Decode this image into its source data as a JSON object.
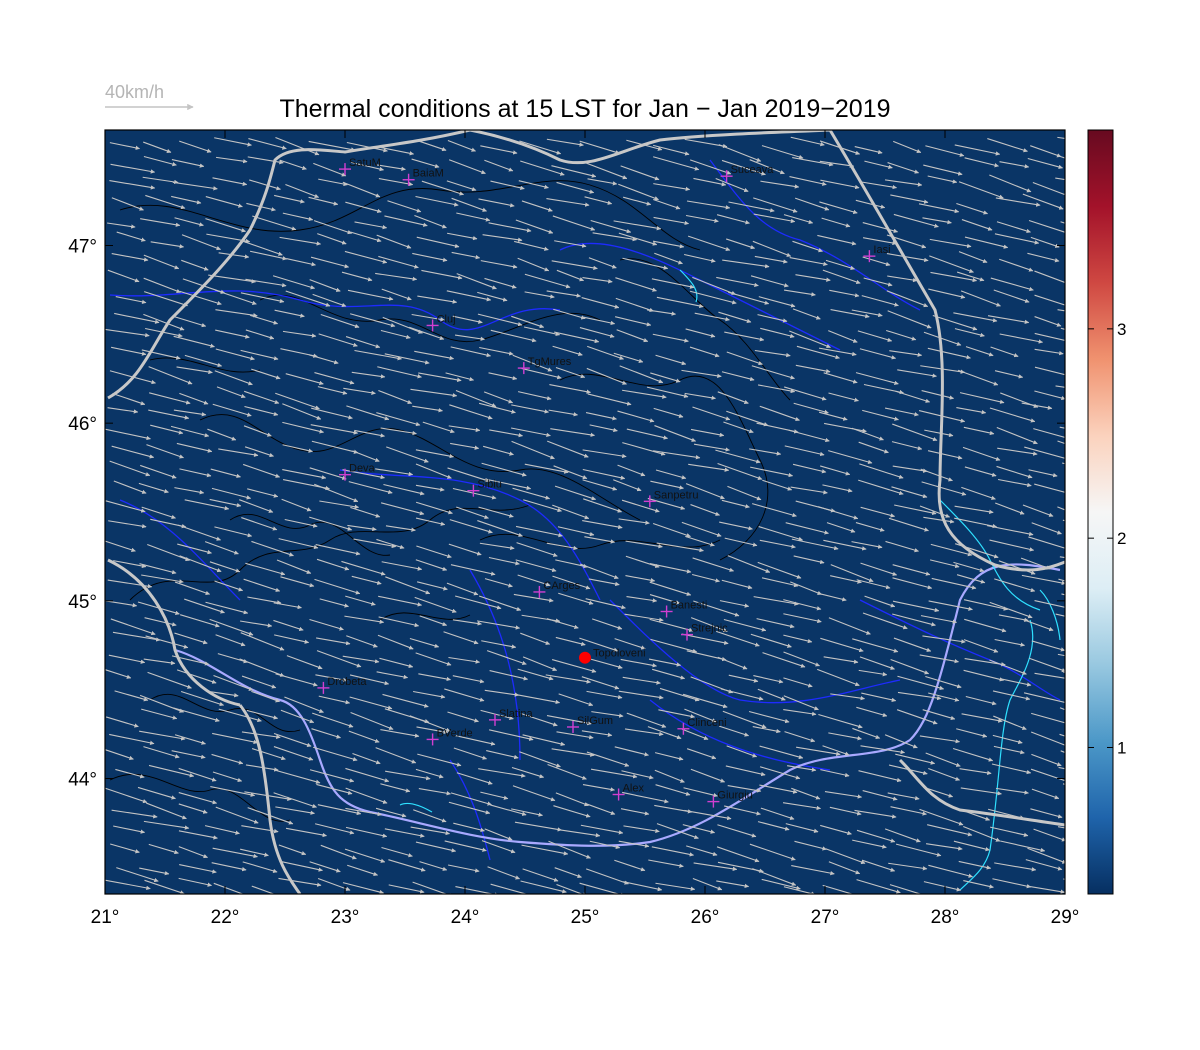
{
  "title": "Thermal conditions at 15 LST for Jan − Jan  2019−2019",
  "wind_scale": {
    "label": "40km/h",
    "value": 40
  },
  "map": {
    "lon_range": [
      21,
      29
    ],
    "lat_range": [
      43.35,
      47.65
    ],
    "lon_ticks": [
      "21°",
      "22°",
      "23°",
      "24°",
      "25°",
      "26°",
      "27°",
      "28°",
      "29°"
    ],
    "lat_ticks": [
      "44°",
      "45°",
      "46°",
      "47°"
    ],
    "field_color": "#0a3566",
    "border_color": "#c8c8c8",
    "river_color": "#1e2bff",
    "danube_color": "#a9a9ff",
    "lake_color": "#2fe0ff",
    "contour_color": "#000000",
    "arrow_color": "#c4c4c4",
    "station_marker_color": "#d13fd1",
    "highlight_color": "#ff0000"
  },
  "colorbar": {
    "ticks": [
      "1",
      "2",
      "3"
    ],
    "range": [
      0.3,
      3.95
    ],
    "colors": [
      "#062f61",
      "#1f64ab",
      "#4c98c8",
      "#98c8e0",
      "#ddeef5",
      "#f6f6f6",
      "#fbd2bd",
      "#f0926f",
      "#cf4842",
      "#a3122a",
      "#670a20"
    ]
  },
  "stations": [
    {
      "name": "SatuM",
      "lon": 23.0,
      "lat": 47.43
    },
    {
      "name": "BaiaM",
      "lon": 23.53,
      "lat": 47.37
    },
    {
      "name": "Suceava",
      "lon": 26.18,
      "lat": 47.39
    },
    {
      "name": "Iasi",
      "lon": 27.37,
      "lat": 46.94
    },
    {
      "name": "Cluj",
      "lon": 23.73,
      "lat": 46.55
    },
    {
      "name": "TgMures",
      "lon": 24.49,
      "lat": 46.31
    },
    {
      "name": "Deva",
      "lon": 23.0,
      "lat": 45.71
    },
    {
      "name": "Sibiu",
      "lon": 24.07,
      "lat": 45.62
    },
    {
      "name": "Sanpetru",
      "lon": 25.54,
      "lat": 45.56
    },
    {
      "name": "CArges",
      "lon": 24.62,
      "lat": 45.05
    },
    {
      "name": "Banesti",
      "lon": 25.68,
      "lat": 44.94
    },
    {
      "name": "Strejnic",
      "lon": 25.85,
      "lat": 44.81
    },
    {
      "name": "Drobeta",
      "lon": 22.82,
      "lat": 44.51
    },
    {
      "name": "Slatina",
      "lon": 24.25,
      "lat": 44.33
    },
    {
      "name": "SilGum",
      "lon": 24.9,
      "lat": 44.29
    },
    {
      "name": "Clinceni",
      "lon": 25.82,
      "lat": 44.28
    },
    {
      "name": "BVerde",
      "lon": 23.73,
      "lat": 44.22
    },
    {
      "name": "Alex",
      "lon": 25.28,
      "lat": 43.91
    },
    {
      "name": "Giurgiu",
      "lon": 26.07,
      "lat": 43.87
    }
  ],
  "highlight_station": {
    "name": "Topoloveni",
    "lon": 25.0,
    "lat": 44.68
  }
}
